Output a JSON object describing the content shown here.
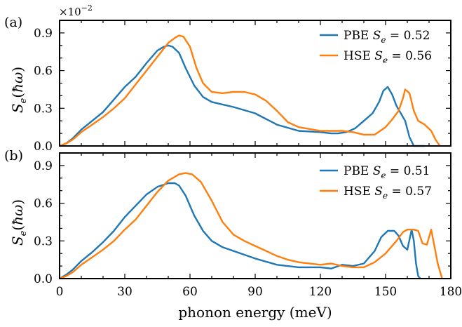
{
  "figure": {
    "xlabel": "phonon energy (meV)",
    "scale_factor": "×10",
    "scale_exponent": "−2"
  },
  "colors": {
    "PBE": "#1f77b4",
    "HSE": "#ff7f0e"
  },
  "chart_data": [
    {
      "type": "line",
      "panel_label": "(a)",
      "ylabel": "S_e(ħω)",
      "xlim": [
        0,
        180
      ],
      "ylim": [
        0,
        1.0
      ],
      "xticks": [
        0,
        30,
        60,
        90,
        120,
        150,
        180
      ],
      "yticks": [
        0.0,
        0.3,
        0.6,
        0.9
      ],
      "ytick_labels": [
        "0.0",
        "0.3",
        "0.6",
        "0.9"
      ],
      "legend_position": "top-right",
      "series": [
        {
          "name": "PBE S_e = 0.52",
          "label_prefix": "PBE",
          "label_var": "S",
          "label_sub": "e",
          "label_value": "= 0.52",
          "color": "#1f77b4",
          "x": [
            0,
            3,
            6,
            10,
            15,
            20,
            25,
            30,
            35,
            40,
            45,
            48,
            50,
            52,
            55,
            58,
            62,
            66,
            70,
            75,
            80,
            90,
            100,
            110,
            120,
            125,
            128,
            132,
            136,
            140,
            144,
            147,
            149,
            151,
            153,
            155,
            157,
            159,
            161,
            163,
            165,
            168
          ],
          "y": [
            0.0,
            0.02,
            0.06,
            0.13,
            0.2,
            0.27,
            0.37,
            0.47,
            0.55,
            0.66,
            0.76,
            0.79,
            0.8,
            0.79,
            0.74,
            0.62,
            0.48,
            0.39,
            0.35,
            0.33,
            0.31,
            0.26,
            0.17,
            0.12,
            0.11,
            0.1,
            0.1,
            0.11,
            0.14,
            0.2,
            0.26,
            0.35,
            0.44,
            0.47,
            0.41,
            0.32,
            0.26,
            0.2,
            0.07,
            0.0,
            0.0,
            0.0
          ]
        },
        {
          "name": "HSE S_e = 0.56",
          "label_prefix": "HSE",
          "label_var": "S",
          "label_sub": "e",
          "label_value": "= 0.56",
          "color": "#ff7f0e",
          "x": [
            0,
            3,
            6,
            10,
            15,
            20,
            25,
            30,
            35,
            40,
            45,
            50,
            53,
            55,
            57,
            60,
            63,
            66,
            70,
            75,
            80,
            85,
            90,
            95,
            100,
            105,
            110,
            120,
            130,
            135,
            140,
            145,
            150,
            153,
            156,
            158,
            159,
            161,
            163,
            165,
            168,
            171,
            173,
            175
          ],
          "y": [
            0.0,
            0.02,
            0.05,
            0.11,
            0.17,
            0.23,
            0.3,
            0.38,
            0.49,
            0.6,
            0.71,
            0.82,
            0.86,
            0.88,
            0.87,
            0.79,
            0.62,
            0.5,
            0.43,
            0.42,
            0.43,
            0.43,
            0.41,
            0.36,
            0.28,
            0.19,
            0.15,
            0.12,
            0.12,
            0.11,
            0.09,
            0.09,
            0.15,
            0.21,
            0.28,
            0.38,
            0.45,
            0.42,
            0.28,
            0.2,
            0.17,
            0.12,
            0.05,
            0.0
          ]
        }
      ]
    },
    {
      "type": "line",
      "panel_label": "(b)",
      "ylabel": "S_e(ħω)",
      "xlim": [
        0,
        180
      ],
      "ylim": [
        0,
        1.0
      ],
      "xticks": [
        0,
        30,
        60,
        90,
        120,
        150,
        180
      ],
      "xtick_labels": [
        "0",
        "30",
        "60",
        "90",
        "120",
        "150",
        "180"
      ],
      "yticks": [
        0.0,
        0.3,
        0.6,
        0.9
      ],
      "ytick_labels": [
        "0.0",
        "0.3",
        "0.6",
        "0.9"
      ],
      "legend_position": "top-right",
      "series": [
        {
          "name": "PBE S_e = 0.51",
          "label_prefix": "PBE",
          "label_var": "S",
          "label_sub": "e",
          "label_value": "= 0.51",
          "color": "#1f77b4",
          "x": [
            0,
            3,
            6,
            10,
            15,
            20,
            25,
            30,
            35,
            40,
            45,
            50,
            53,
            55,
            58,
            62,
            66,
            70,
            75,
            80,
            90,
            100,
            110,
            120,
            125,
            130,
            135,
            140,
            145,
            148,
            151,
            154,
            156,
            158,
            160,
            162,
            163,
            164,
            165,
            166
          ],
          "y": [
            0.0,
            0.03,
            0.07,
            0.14,
            0.21,
            0.29,
            0.38,
            0.49,
            0.58,
            0.67,
            0.73,
            0.76,
            0.76,
            0.74,
            0.66,
            0.5,
            0.38,
            0.3,
            0.25,
            0.22,
            0.16,
            0.11,
            0.09,
            0.09,
            0.08,
            0.11,
            0.1,
            0.12,
            0.22,
            0.33,
            0.38,
            0.38,
            0.34,
            0.26,
            0.23,
            0.39,
            0.3,
            0.12,
            0.02,
            0.0
          ]
        },
        {
          "name": "HSE S_e = 0.57",
          "label_prefix": "HSE",
          "label_var": "S",
          "label_sub": "e",
          "label_value": "= 0.57",
          "color": "#ff7f0e",
          "x": [
            0,
            3,
            6,
            10,
            15,
            20,
            25,
            30,
            35,
            40,
            45,
            50,
            55,
            58,
            61,
            65,
            70,
            75,
            80,
            85,
            90,
            95,
            100,
            105,
            110,
            120,
            125,
            130,
            135,
            140,
            145,
            150,
            155,
            158,
            160,
            163,
            165,
            167,
            169,
            170,
            171,
            172,
            174,
            176
          ],
          "y": [
            0.0,
            0.02,
            0.05,
            0.11,
            0.17,
            0.23,
            0.3,
            0.39,
            0.47,
            0.58,
            0.69,
            0.78,
            0.83,
            0.84,
            0.83,
            0.77,
            0.62,
            0.45,
            0.35,
            0.3,
            0.26,
            0.22,
            0.18,
            0.15,
            0.13,
            0.11,
            0.12,
            0.1,
            0.09,
            0.09,
            0.13,
            0.2,
            0.3,
            0.37,
            0.39,
            0.39,
            0.38,
            0.28,
            0.27,
            0.33,
            0.39,
            0.3,
            0.12,
            0.0
          ]
        }
      ]
    }
  ]
}
